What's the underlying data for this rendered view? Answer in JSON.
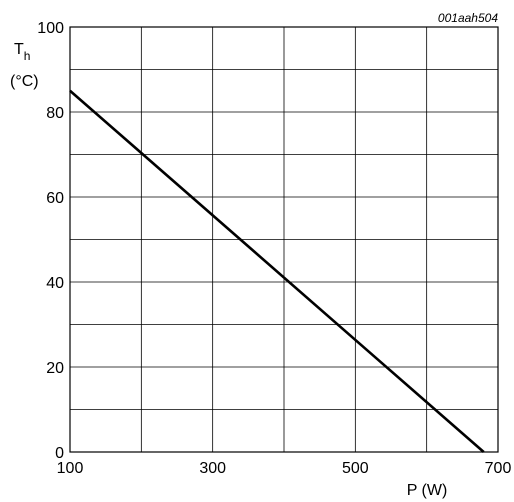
{
  "figure_code": "001aah504",
  "chart_data": {
    "type": "line",
    "ylabel_symbol": "T",
    "ylabel_subscript": "h",
    "ylabel_unit": "(°C)",
    "xlabel": "P (W)",
    "xlim": [
      100,
      700
    ],
    "ylim": [
      0,
      100
    ],
    "x_tick_labels": [
      "100",
      "300",
      "500",
      "700"
    ],
    "y_tick_labels": [
      "0",
      "20",
      "40",
      "60",
      "80",
      "100"
    ],
    "x_grid_values": [
      100,
      200,
      300,
      400,
      500,
      600,
      700
    ],
    "y_grid_values": [
      0,
      10,
      20,
      30,
      40,
      50,
      60,
      70,
      80,
      90,
      100
    ],
    "grid": true,
    "series": [
      {
        "x": [
          100,
          680
        ],
        "y": [
          85,
          0
        ]
      }
    ]
  }
}
